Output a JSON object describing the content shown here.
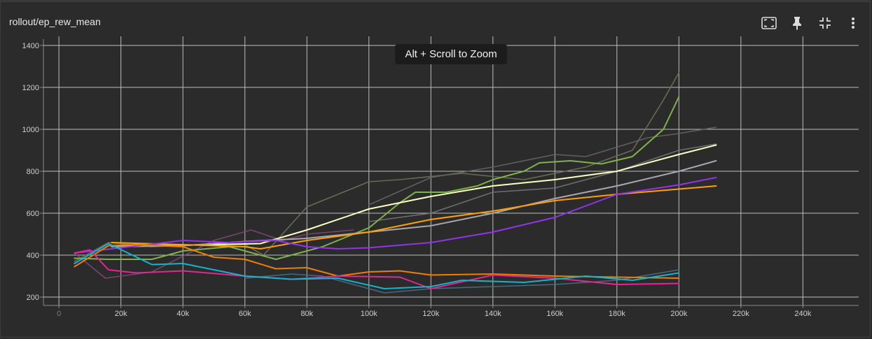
{
  "card": {
    "title": "rollout/ep_rew_mean"
  },
  "toolbar": {
    "icons": [
      "fit-domain-icon",
      "pin-icon",
      "collapse-icon",
      "more-vert-icon"
    ]
  },
  "tooltip": {
    "text": "Alt + Scroll to Zoom"
  },
  "chart_data": {
    "type": "line",
    "title": "rollout/ep_rew_mean",
    "xlabel": "",
    "ylabel": "",
    "xlim": [
      -5000,
      258000
    ],
    "ylim": [
      160,
      1430
    ],
    "x_ticks": [
      0,
      20000,
      40000,
      60000,
      80000,
      100000,
      120000,
      140000,
      160000,
      180000,
      200000,
      220000,
      240000
    ],
    "x_tick_labels": [
      "0",
      "20k",
      "40k",
      "60k",
      "80k",
      "100k",
      "120k",
      "140k",
      "160k",
      "180k",
      "200k",
      "220k",
      "240k"
    ],
    "y_ticks": [
      200,
      400,
      600,
      800,
      1000,
      1200,
      1400
    ],
    "y_tick_labels": [
      "200",
      "400",
      "600",
      "800",
      "1000",
      "1200",
      "1400"
    ],
    "grid": true,
    "series": [
      {
        "color": "#6b7355",
        "smoothed": false,
        "points": [
          [
            5000,
            370
          ],
          [
            16000,
            460
          ],
          [
            30000,
            440
          ],
          [
            45000,
            450
          ],
          [
            60000,
            450
          ],
          [
            66000,
            400
          ],
          [
            80000,
            630
          ],
          [
            100000,
            750
          ],
          [
            110000,
            760
          ],
          [
            130000,
            790
          ],
          [
            150000,
            760
          ],
          [
            170000,
            820
          ],
          [
            185000,
            900
          ],
          [
            195000,
            1140
          ],
          [
            200000,
            1270
          ]
        ]
      },
      {
        "color": "#656565",
        "smoothed": false,
        "points": [
          [
            100000,
            640
          ],
          [
            120000,
            770
          ],
          [
            140000,
            820
          ],
          [
            160000,
            880
          ],
          [
            170000,
            870
          ],
          [
            190000,
            960
          ],
          [
            200000,
            980
          ],
          [
            212000,
            1010
          ]
        ]
      },
      {
        "color": "#76767a",
        "smoothed": false,
        "points": [
          [
            100000,
            560
          ],
          [
            120000,
            600
          ],
          [
            140000,
            700
          ],
          [
            160000,
            720
          ],
          [
            180000,
            800
          ],
          [
            200000,
            900
          ],
          [
            212000,
            930
          ]
        ]
      },
      {
        "color": "#7d4a73",
        "smoothed": false,
        "points": [
          [
            5000,
            410
          ],
          [
            15000,
            290
          ],
          [
            30000,
            320
          ],
          [
            50000,
            470
          ],
          [
            62000,
            520
          ],
          [
            72000,
            470
          ],
          [
            80000,
            500
          ],
          [
            95000,
            520
          ]
        ]
      },
      {
        "color": "#4a6f88",
        "smoothed": false,
        "points": [
          [
            60000,
            290
          ],
          [
            75000,
            310
          ],
          [
            85000,
            300
          ],
          [
            105000,
            220
          ],
          [
            120000,
            240
          ],
          [
            140000,
            250
          ],
          [
            160000,
            260
          ],
          [
            180000,
            280
          ],
          [
            200000,
            330
          ]
        ]
      },
      {
        "color": "#7fb349",
        "smoothed": true,
        "points": [
          [
            5000,
            385
          ],
          [
            16000,
            380
          ],
          [
            30000,
            380
          ],
          [
            40000,
            420
          ],
          [
            55000,
            440
          ],
          [
            70000,
            380
          ],
          [
            85000,
            440
          ],
          [
            100000,
            530
          ],
          [
            110000,
            650
          ],
          [
            115000,
            700
          ],
          [
            125000,
            700
          ],
          [
            135000,
            730
          ],
          [
            140000,
            760
          ],
          [
            150000,
            800
          ],
          [
            155000,
            840
          ],
          [
            165000,
            850
          ],
          [
            175000,
            835
          ],
          [
            185000,
            870
          ],
          [
            195000,
            1000
          ],
          [
            200000,
            1155
          ]
        ]
      },
      {
        "color": "#fbffc0",
        "smoothed": true,
        "points": [
          [
            17000,
            445
          ],
          [
            30000,
            445
          ],
          [
            50000,
            450
          ],
          [
            65000,
            455
          ],
          [
            80000,
            520
          ],
          [
            100000,
            620
          ],
          [
            120000,
            680
          ],
          [
            140000,
            730
          ],
          [
            160000,
            760
          ],
          [
            180000,
            800
          ],
          [
            200000,
            880
          ],
          [
            212000,
            925
          ]
        ]
      },
      {
        "color": "#a9a6b0",
        "smoothed": true,
        "points": [
          [
            17000,
            440
          ],
          [
            40000,
            445
          ],
          [
            60000,
            465
          ],
          [
            80000,
            480
          ],
          [
            100000,
            510
          ],
          [
            120000,
            540
          ],
          [
            140000,
            600
          ],
          [
            160000,
            670
          ],
          [
            180000,
            730
          ],
          [
            200000,
            800
          ],
          [
            212000,
            850
          ]
        ]
      },
      {
        "color": "#ffa000",
        "smoothed": true,
        "points": [
          [
            17000,
            460
          ],
          [
            40000,
            450
          ],
          [
            60000,
            440
          ],
          [
            65000,
            430
          ],
          [
            80000,
            470
          ],
          [
            100000,
            510
          ],
          [
            120000,
            570
          ],
          [
            140000,
            610
          ],
          [
            160000,
            660
          ],
          [
            180000,
            690
          ],
          [
            200000,
            715
          ],
          [
            212000,
            730
          ]
        ]
      },
      {
        "color": "#9334e6",
        "smoothed": true,
        "points": [
          [
            5000,
            410
          ],
          [
            17000,
            430
          ],
          [
            40000,
            470
          ],
          [
            55000,
            460
          ],
          [
            70000,
            470
          ],
          [
            80000,
            440
          ],
          [
            90000,
            430
          ],
          [
            100000,
            435
          ],
          [
            120000,
            460
          ],
          [
            140000,
            510
          ],
          [
            160000,
            580
          ],
          [
            180000,
            690
          ],
          [
            200000,
            735
          ],
          [
            212000,
            770
          ]
        ]
      },
      {
        "color": "#ee7f00",
        "smoothed": true,
        "points": [
          [
            5000,
            345
          ],
          [
            16000,
            445
          ],
          [
            25000,
            450
          ],
          [
            40000,
            440
          ],
          [
            50000,
            390
          ],
          [
            60000,
            380
          ],
          [
            70000,
            335
          ],
          [
            80000,
            340
          ],
          [
            90000,
            300
          ],
          [
            100000,
            320
          ],
          [
            110000,
            325
          ],
          [
            120000,
            305
          ],
          [
            140000,
            310
          ],
          [
            160000,
            300
          ],
          [
            180000,
            295
          ],
          [
            200000,
            290
          ]
        ]
      },
      {
        "color": "#e52592",
        "smoothed": true,
        "points": [
          [
            5000,
            410
          ],
          [
            10000,
            425
          ],
          [
            16000,
            330
          ],
          [
            25000,
            315
          ],
          [
            40000,
            325
          ],
          [
            60000,
            300
          ],
          [
            75000,
            285
          ],
          [
            90000,
            300
          ],
          [
            110000,
            295
          ],
          [
            120000,
            240
          ],
          [
            140000,
            305
          ],
          [
            160000,
            290
          ],
          [
            180000,
            260
          ],
          [
            200000,
            265
          ]
        ]
      },
      {
        "color": "#12b5cb",
        "smoothed": true,
        "points": [
          [
            5000,
            360
          ],
          [
            16000,
            455
          ],
          [
            30000,
            355
          ],
          [
            40000,
            360
          ],
          [
            60000,
            300
          ],
          [
            75000,
            285
          ],
          [
            90000,
            290
          ],
          [
            105000,
            240
          ],
          [
            120000,
            250
          ],
          [
            130000,
            280
          ],
          [
            150000,
            270
          ],
          [
            170000,
            300
          ],
          [
            185000,
            280
          ],
          [
            200000,
            315
          ]
        ]
      }
    ]
  }
}
